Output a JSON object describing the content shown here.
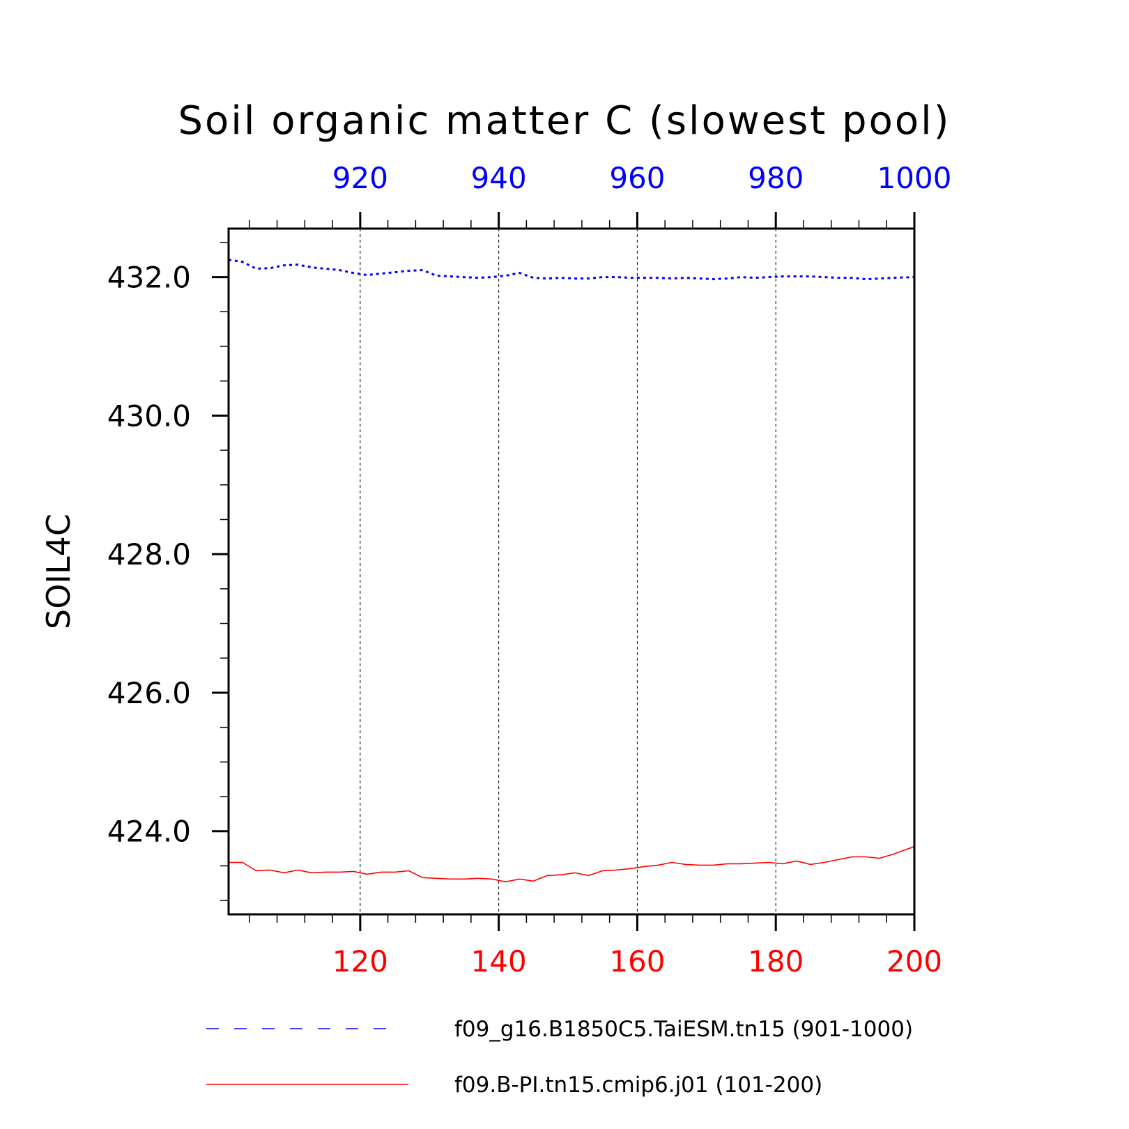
{
  "chart_data": {
    "type": "line",
    "title": "Soil organic matter C (slowest pool)",
    "ylabel": "SOIL4C",
    "ylim": [
      422.8,
      432.7
    ],
    "yticks": [
      424.0,
      426.0,
      428.0,
      430.0,
      432.0
    ],
    "ytick_labels": [
      "424.0",
      "426.0",
      "428.0",
      "430.0",
      "432.0"
    ],
    "x_bottom": {
      "range": [
        101,
        200
      ],
      "ticks": [
        120,
        140,
        160,
        180,
        200
      ],
      "tick_labels": [
        "120",
        "140",
        "160",
        "180",
        "200"
      ],
      "color": "#ff0000"
    },
    "x_top": {
      "range": [
        901,
        1000
      ],
      "ticks": [
        920,
        940,
        960,
        980,
        1000
      ],
      "tick_labels": [
        "920",
        "940",
        "960",
        "980",
        "1000"
      ],
      "color": "#0000ff"
    },
    "grid": "vertical dashed at major x ticks",
    "legend_placement": "bottom",
    "series": [
      {
        "name": "f09_g16.B1850C5.TaiESM.tn15 (901-1000)",
        "axis": "top",
        "color": "#0000ff",
        "style": "dotted",
        "x": [
          901,
          903,
          905,
          907,
          909,
          911,
          913,
          915,
          917,
          919,
          921,
          923,
          925,
          927,
          929,
          931,
          933,
          935,
          937,
          939,
          941,
          943,
          945,
          947,
          949,
          951,
          953,
          955,
          957,
          959,
          961,
          963,
          965,
          967,
          969,
          971,
          973,
          975,
          977,
          979,
          981,
          983,
          985,
          987,
          989,
          991,
          993,
          995,
          997,
          1000
        ],
        "values": [
          432.25,
          432.22,
          432.12,
          432.13,
          432.17,
          432.18,
          432.14,
          432.12,
          432.1,
          432.06,
          432.03,
          432.05,
          432.07,
          432.09,
          432.1,
          432.02,
          432.01,
          432.0,
          431.99,
          432.0,
          432.02,
          432.06,
          431.99,
          431.98,
          431.99,
          431.98,
          431.98,
          432.0,
          432.0,
          431.99,
          431.99,
          431.99,
          431.98,
          431.99,
          431.98,
          431.97,
          431.98,
          432.0,
          431.99,
          432.0,
          432.01,
          432.01,
          432.01,
          432.0,
          431.99,
          431.99,
          431.97,
          431.98,
          431.99,
          432.0
        ]
      },
      {
        "name": "f09.B-PI.tn15.cmip6.j01 (101-200)",
        "axis": "bottom",
        "color": "#ff0000",
        "style": "solid",
        "x": [
          101,
          103,
          105,
          107,
          109,
          111,
          113,
          115,
          117,
          119,
          121,
          123,
          125,
          127,
          129,
          131,
          133,
          135,
          137,
          139,
          141,
          143,
          145,
          147,
          149,
          151,
          153,
          155,
          157,
          159,
          161,
          163,
          165,
          167,
          169,
          171,
          173,
          175,
          177,
          179,
          181,
          183,
          185,
          187,
          189,
          191,
          193,
          195,
          197,
          200
        ],
        "values": [
          423.55,
          423.55,
          423.43,
          423.44,
          423.4,
          423.44,
          423.4,
          423.41,
          423.41,
          423.42,
          423.38,
          423.41,
          423.41,
          423.43,
          423.33,
          423.32,
          423.31,
          423.31,
          423.32,
          423.31,
          423.27,
          423.31,
          423.28,
          423.36,
          423.37,
          423.4,
          423.36,
          423.43,
          423.44,
          423.46,
          423.49,
          423.51,
          423.55,
          423.52,
          423.51,
          423.51,
          423.53,
          423.53,
          423.54,
          423.55,
          423.53,
          423.57,
          423.52,
          423.55,
          423.59,
          423.63,
          423.63,
          423.61,
          423.67,
          423.78
        ]
      }
    ]
  }
}
